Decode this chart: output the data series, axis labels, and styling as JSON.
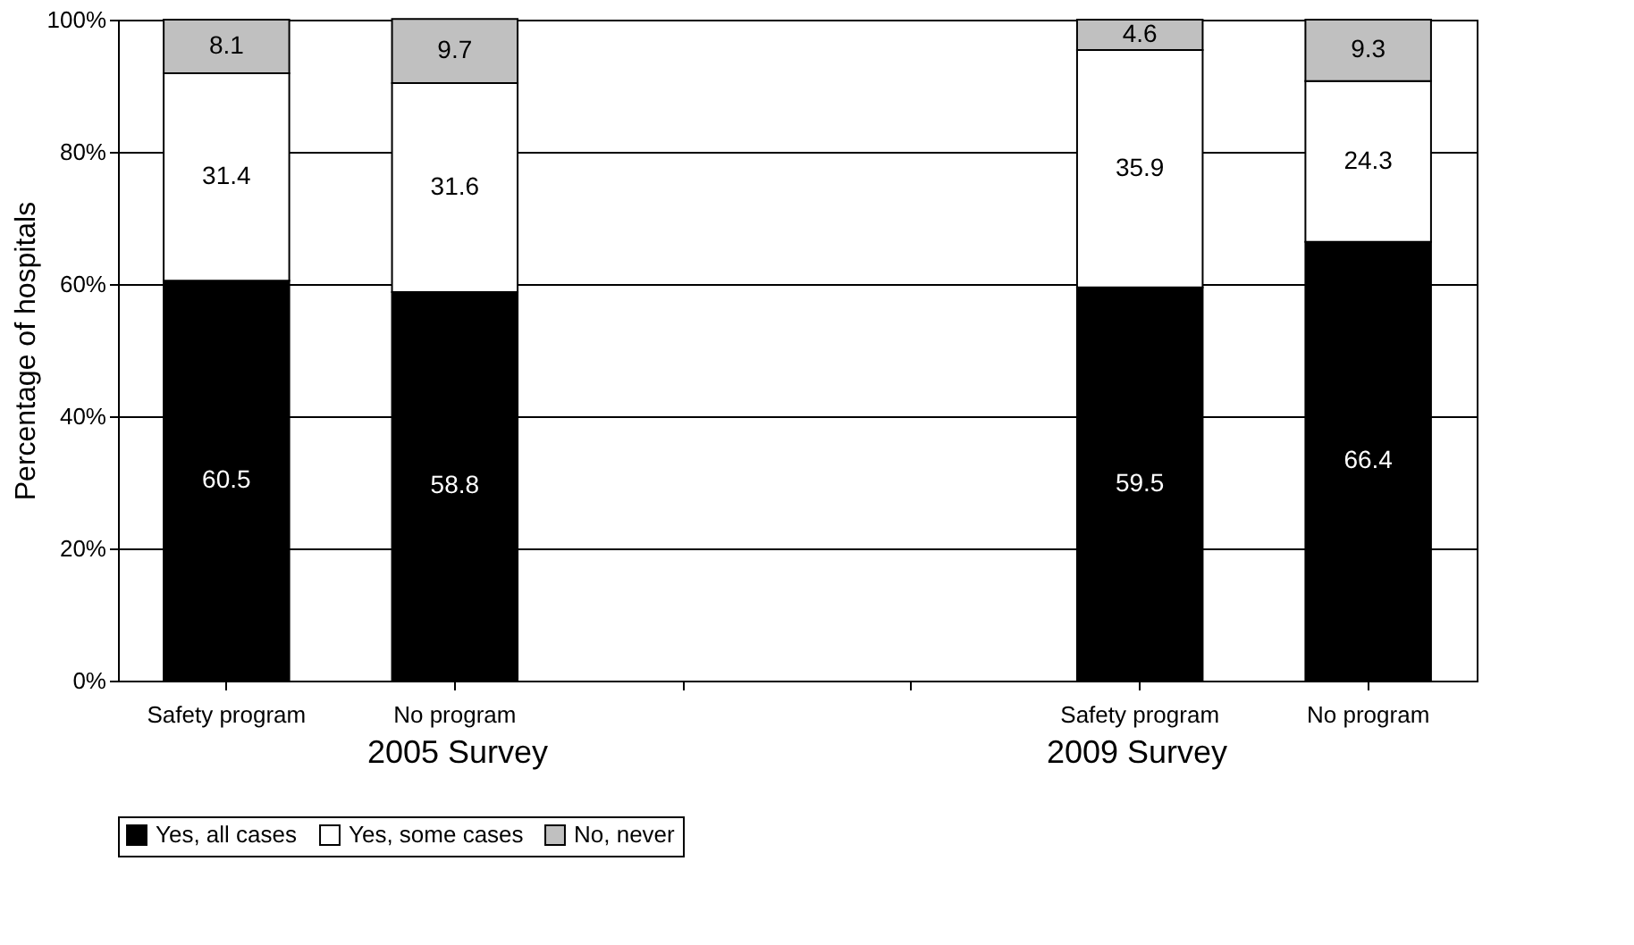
{
  "chart_data": {
    "type": "bar",
    "stacked": true,
    "ylabel": "Percentage of hospitals",
    "categories": [
      "Safety program",
      "No program",
      null,
      null,
      "Safety program",
      "No program"
    ],
    "series": [
      {
        "name": "Yes, all cases",
        "color": "#000000",
        "values": [
          60.5,
          58.8,
          null,
          null,
          59.5,
          66.4
        ]
      },
      {
        "name": "Yes, some cases",
        "color": "#ffffff",
        "values": [
          31.4,
          31.6,
          null,
          null,
          35.9,
          24.3
        ]
      },
      {
        "name": "No, never",
        "color": "#c0c0c0",
        "values": [
          8.1,
          9.7,
          null,
          null,
          4.6,
          9.3
        ]
      }
    ],
    "ylim": [
      0,
      100
    ],
    "yticks": [
      {
        "value": 0,
        "label": "0%"
      },
      {
        "value": 20,
        "label": "20%"
      },
      {
        "value": 40,
        "label": "40%"
      },
      {
        "value": 60,
        "label": "60%"
      },
      {
        "value": 80,
        "label": "80%"
      },
      {
        "value": 100,
        "label": "100%"
      }
    ],
    "annotations": [
      "2005 Survey",
      "2009 Survey"
    ],
    "data_labels": true,
    "grid": "y",
    "legend": "bottom"
  }
}
